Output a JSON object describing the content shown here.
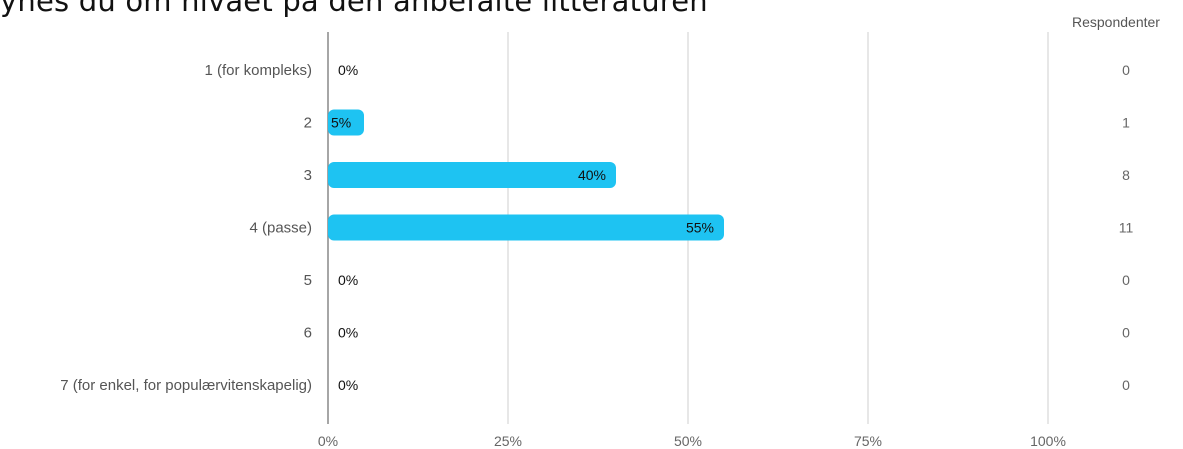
{
  "title": "ynes du om nivået på den anbefalte litteraturen",
  "respondents_header": "Respondenter",
  "colors": {
    "bar": "#1EC3F2",
    "grid": "#cfcfcf",
    "axis": "#888888"
  },
  "chart_data": {
    "type": "bar",
    "orientation": "horizontal",
    "title": "ynes du om nivået på den anbefalte litteraturen",
    "categories": [
      "1 (for kompleks)",
      "2",
      "3",
      "4 (passe)",
      "5",
      "6",
      "7 (for enkel, for populærvitenskapelig)"
    ],
    "values": [
      0,
      5,
      40,
      55,
      0,
      0,
      0
    ],
    "value_labels": [
      "0%",
      "5%",
      "40%",
      "55%",
      "0%",
      "0%",
      "0%"
    ],
    "respondents": [
      0,
      1,
      8,
      11,
      0,
      0,
      0
    ],
    "xticks": [
      "0%",
      "25%",
      "50%",
      "75%",
      "100%"
    ],
    "xlim": [
      0,
      100
    ],
    "grid": true
  }
}
